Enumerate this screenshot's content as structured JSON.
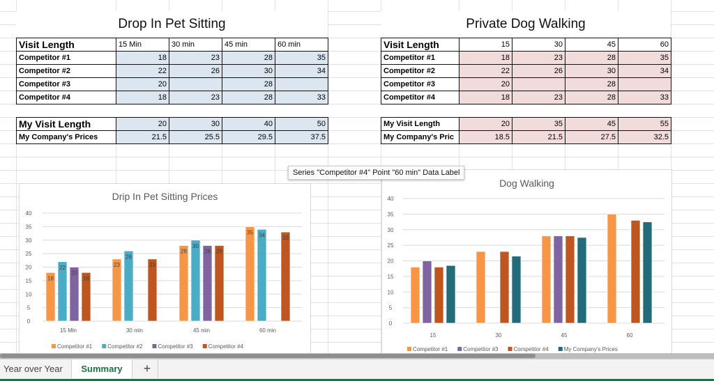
{
  "sheet": {
    "tabs": [
      {
        "label": "Year over Year",
        "active": false
      },
      {
        "label": "Summary",
        "active": true
      }
    ],
    "add_tab_label": "+"
  },
  "pet_sitting_table": {
    "title": "Drop In Pet Sitting",
    "header_label": "Visit Length",
    "columns": [
      "15 Min",
      "30 min",
      "45 min",
      "60 min"
    ],
    "rows": [
      {
        "label": "Competitor #1",
        "values": [
          "18",
          "23",
          "28",
          "35"
        ]
      },
      {
        "label": "Competitor #2",
        "values": [
          "22",
          "26",
          "30",
          "34"
        ]
      },
      {
        "label": "Competitor #3",
        "values": [
          "20",
          "",
          "28",
          ""
        ]
      },
      {
        "label": "Competitor #4",
        "values": [
          "18",
          "23",
          "28",
          "33"
        ]
      }
    ],
    "my_rows": [
      {
        "label": "My Visit Length",
        "values": [
          "20",
          "30",
          "40",
          "50"
        ]
      },
      {
        "label": "My Company's Prices",
        "values": [
          "21.5",
          "25.5",
          "29.5",
          "37.5"
        ]
      }
    ]
  },
  "dog_walking_table": {
    "title": "Private Dog Walking",
    "header_label": "Visit Length",
    "columns": [
      "15",
      "30",
      "45",
      "60"
    ],
    "rows": [
      {
        "label": "Competitor #1",
        "values": [
          "18",
          "23",
          "28",
          "35"
        ]
      },
      {
        "label": "Competitor #2",
        "values": [
          "22",
          "26",
          "30",
          "34"
        ]
      },
      {
        "label": "Competitor #3",
        "values": [
          "20",
          "",
          "28",
          ""
        ]
      },
      {
        "label": "Competitor #4",
        "values": [
          "18",
          "23",
          "28",
          "33"
        ]
      }
    ],
    "my_rows": [
      {
        "label": "My Visit Length",
        "values": [
          "20",
          "35",
          "45",
          "55"
        ]
      },
      {
        "label": "My Company's Pric",
        "values": [
          "18.5",
          "21.5",
          "27.5",
          "32.5"
        ]
      }
    ]
  },
  "tooltip": "Series \"Competitor #4\" Point \"60 min\" Data Label",
  "chart_data": [
    {
      "type": "bar",
      "title": "Drip In Pet Sitting Prices",
      "categories": [
        "15 Min",
        "30 min",
        "45 min",
        "60 min"
      ],
      "ylim": [
        0,
        40
      ],
      "yticks": [
        0,
        5,
        10,
        15,
        20,
        25,
        30,
        35,
        40
      ],
      "grid": true,
      "data_labels": true,
      "legend": "bottom",
      "series": [
        {
          "name": "Competitor #1",
          "color": "#f79646",
          "values": [
            18,
            23,
            28,
            35
          ]
        },
        {
          "name": "Competitor #2",
          "color": "#4bacc6",
          "values": [
            22,
            26,
            30,
            34
          ]
        },
        {
          "name": "Competitor #3",
          "color": "#8064a2",
          "values": [
            20,
            null,
            28,
            null
          ]
        },
        {
          "name": "Competitor #4",
          "color": "#c0561f",
          "values": [
            18,
            23,
            28,
            33
          ]
        }
      ]
    },
    {
      "type": "bar",
      "title": "Dog Walking",
      "categories": [
        "15",
        "30",
        "45",
        "60"
      ],
      "ylim": [
        0,
        40
      ],
      "yticks": [
        0,
        5,
        10,
        15,
        20,
        25,
        30,
        35,
        40
      ],
      "grid": true,
      "data_labels": false,
      "legend": "bottom",
      "series": [
        {
          "name": "Competitor #1",
          "color": "#f79646",
          "values": [
            18,
            23,
            28,
            35
          ]
        },
        {
          "name": "Competitor #3",
          "color": "#8064a2",
          "values": [
            20,
            null,
            28,
            null
          ]
        },
        {
          "name": "Competitor #4",
          "color": "#c0561f",
          "values": [
            18,
            23,
            28,
            33
          ]
        },
        {
          "name": "My Company's Prices",
          "color": "#236b7a",
          "values": [
            18.5,
            21.5,
            27.5,
            32.5
          ]
        }
      ]
    }
  ]
}
